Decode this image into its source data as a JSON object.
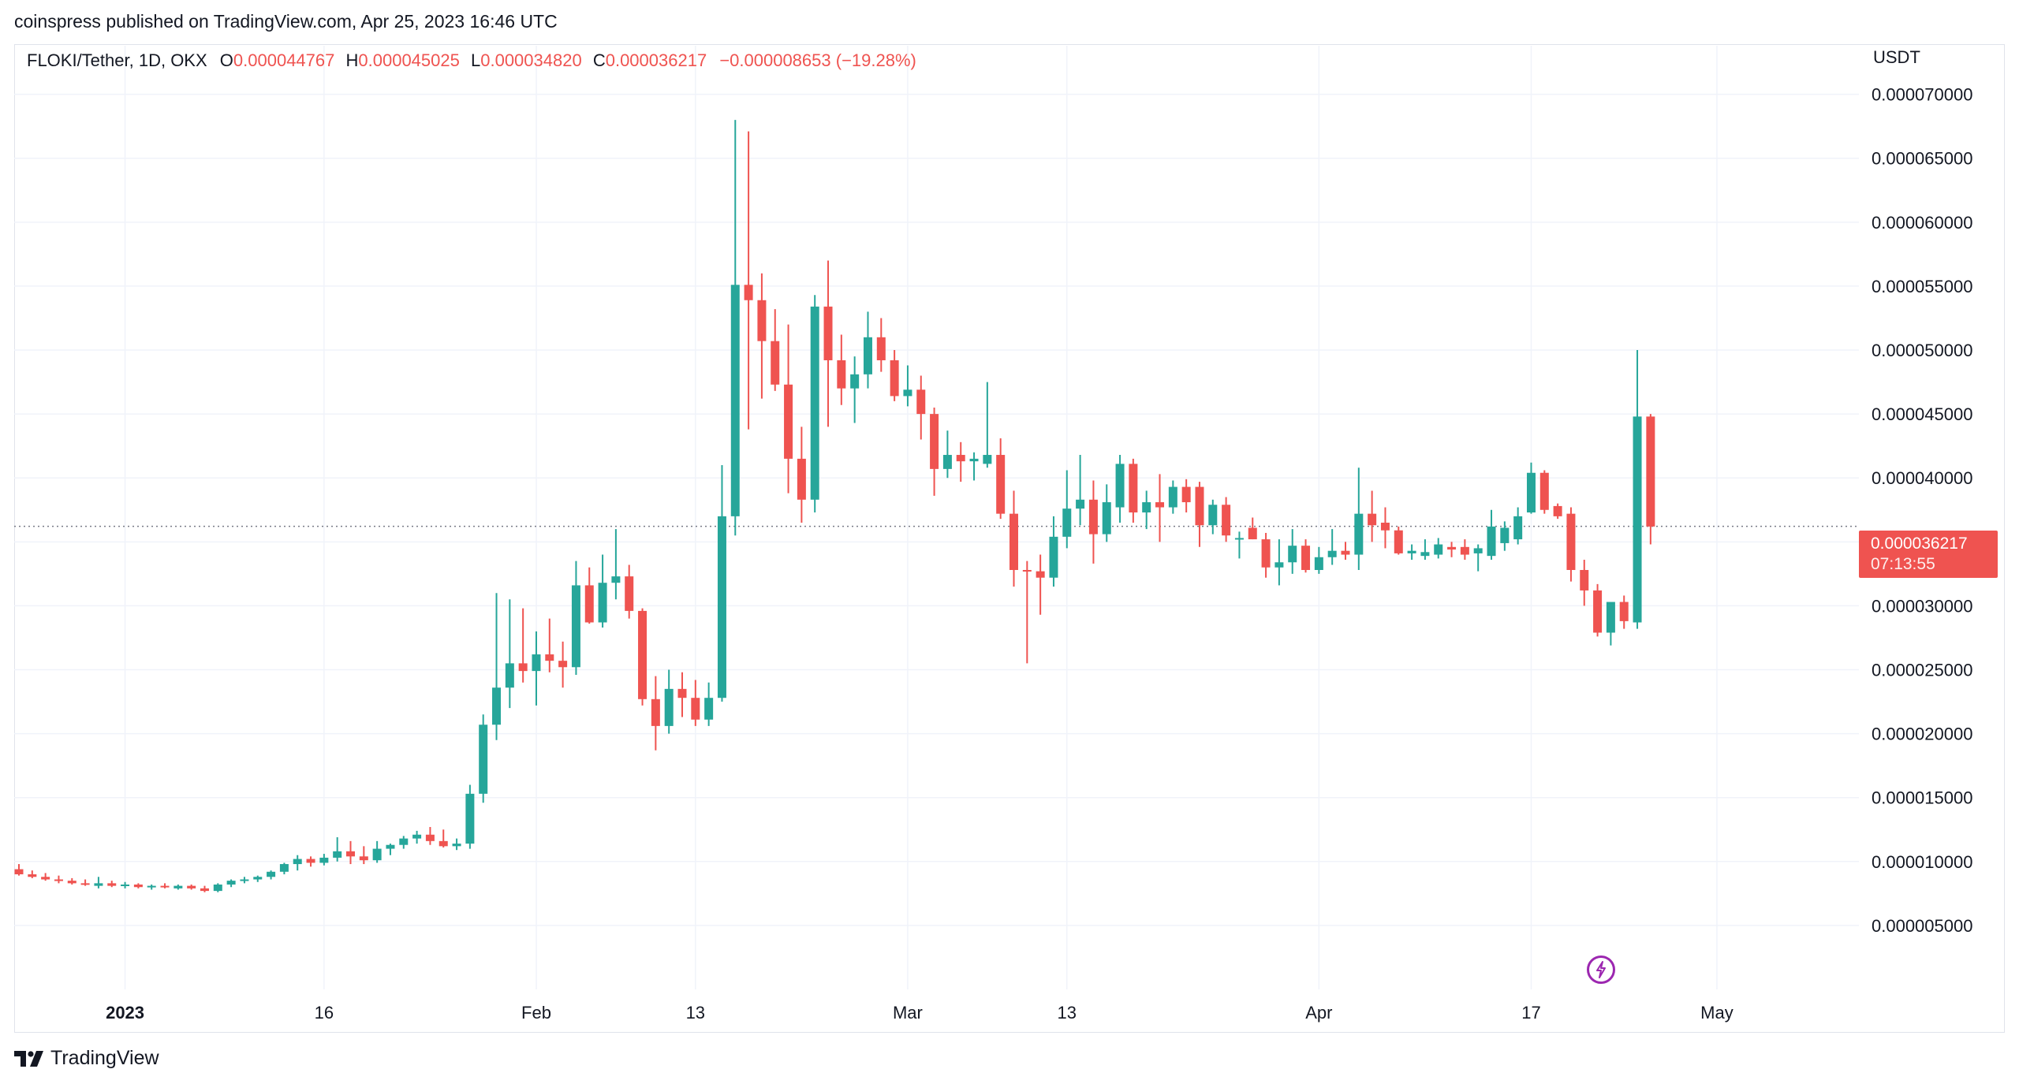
{
  "header": {
    "published": "coinspress published on TradingView.com, Apr 25, 2023 16:46 UTC"
  },
  "legend": {
    "symbol": "FLOKI/Tether, 1D, OKX",
    "o_label": "O",
    "o_value": "0.000044767",
    "h_label": "H",
    "h_value": "0.000045025",
    "l_label": "L",
    "l_value": "0.000034820",
    "c_label": "C",
    "c_value": "0.000036217",
    "change": "−0.000008653 (−19.28%)"
  },
  "axis": {
    "unit": "USDT"
  },
  "price_tag": {
    "price": "0.000036217",
    "countdown": "07:13:55"
  },
  "footer": {
    "brand": "TradingView"
  },
  "colors": {
    "up": "#26a69a",
    "down": "#ef5350",
    "grid": "#f0f3fa",
    "text": "#131722",
    "badge": "#9c27b0"
  },
  "chart_data": {
    "type": "candlestick",
    "symbol": "FLOKI/Tether",
    "interval": "1D",
    "exchange": "OKX",
    "ylabel": "USDT",
    "ylim": [
      0.0,
      7.38e-05
    ],
    "y_ticks": [
      {
        "v": 5e-06,
        "label": "0.000005000"
      },
      {
        "v": 1e-05,
        "label": "0.000010000"
      },
      {
        "v": 1.5e-05,
        "label": "0.000015000"
      },
      {
        "v": 2e-05,
        "label": "0.000020000"
      },
      {
        "v": 2.5e-05,
        "label": "0.000025000"
      },
      {
        "v": 3e-05,
        "label": "0.000030000"
      },
      {
        "v": 3.5e-05,
        "label": "0.000035000"
      },
      {
        "v": 4e-05,
        "label": "0.000040000"
      },
      {
        "v": 4.5e-05,
        "label": "0.000045000"
      },
      {
        "v": 5e-05,
        "label": "0.000050000"
      },
      {
        "v": 5.5e-05,
        "label": "0.000055000"
      },
      {
        "v": 6e-05,
        "label": "0.000060000"
      },
      {
        "v": 6.5e-05,
        "label": "0.000065000"
      },
      {
        "v": 7e-05,
        "label": "0.000070000"
      }
    ],
    "x_ticks": [
      {
        "i": 8,
        "label": "2023",
        "bold": true
      },
      {
        "i": 23,
        "label": "16",
        "bold": false
      },
      {
        "i": 39,
        "label": "Feb",
        "bold": false
      },
      {
        "i": 51,
        "label": "13",
        "bold": false
      },
      {
        "i": 67,
        "label": "Mar",
        "bold": false
      },
      {
        "i": 79,
        "label": "13",
        "bold": false
      },
      {
        "i": 98,
        "label": "Apr",
        "bold": false
      },
      {
        "i": 114,
        "label": "17",
        "bold": false
      },
      {
        "i": 128,
        "label": "May",
        "bold": false
      }
    ],
    "last_price": 3.6217e-05,
    "candles": [
      {
        "o": 9.4e-06,
        "h": 9.8e-06,
        "l": 8.9e-06,
        "c": 9e-06
      },
      {
        "o": 9e-06,
        "h": 9.3e-06,
        "l": 8.7e-06,
        "c": 8.8e-06
      },
      {
        "o": 8.8e-06,
        "h": 9.1e-06,
        "l": 8.5e-06,
        "c": 8.6e-06
      },
      {
        "o": 8.6e-06,
        "h": 8.9e-06,
        "l": 8.3e-06,
        "c": 8.5e-06
      },
      {
        "o": 8.5e-06,
        "h": 8.7e-06,
        "l": 8.2e-06,
        "c": 8.3e-06
      },
      {
        "o": 8.3e-06,
        "h": 8.6e-06,
        "l": 8.1e-06,
        "c": 8.2e-06
      },
      {
        "o": 8.1e-06,
        "h": 8.8e-06,
        "l": 7.9e-06,
        "c": 8.3e-06
      },
      {
        "o": 8.3e-06,
        "h": 8.5e-06,
        "l": 8e-06,
        "c": 8.1e-06
      },
      {
        "o": 8.1e-06,
        "h": 8.4e-06,
        "l": 7.9e-06,
        "c": 8.2e-06
      },
      {
        "o": 8.2e-06,
        "h": 8.3e-06,
        "l": 7.9e-06,
        "c": 8e-06
      },
      {
        "o": 8e-06,
        "h": 8.2e-06,
        "l": 7.8e-06,
        "c": 8.1e-06
      },
      {
        "o": 8.1e-06,
        "h": 8.3e-06,
        "l": 7.9e-06,
        "c": 8e-06
      },
      {
        "o": 7.9e-06,
        "h": 8.2e-06,
        "l": 7.8e-06,
        "c": 8.1e-06
      },
      {
        "o": 8.1e-06,
        "h": 8.2e-06,
        "l": 7.8e-06,
        "c": 7.9e-06
      },
      {
        "o": 7.9e-06,
        "h": 8.1e-06,
        "l": 7.6e-06,
        "c": 7.7e-06
      },
      {
        "o": 7.7e-06,
        "h": 8.3e-06,
        "l": 7.6e-06,
        "c": 8.2e-06
      },
      {
        "o": 8.2e-06,
        "h": 8.6e-06,
        "l": 8e-06,
        "c": 8.5e-06
      },
      {
        "o": 8.5e-06,
        "h": 8.8e-06,
        "l": 8.3e-06,
        "c": 8.6e-06
      },
      {
        "o": 8.6e-06,
        "h": 8.9e-06,
        "l": 8.4e-06,
        "c": 8.8e-06
      },
      {
        "o": 8.8e-06,
        "h": 9.3e-06,
        "l": 8.6e-06,
        "c": 9.2e-06
      },
      {
        "o": 9.2e-06,
        "h": 9.9e-06,
        "l": 9e-06,
        "c": 9.8e-06
      },
      {
        "o": 9.8e-06,
        "h": 1.05e-05,
        "l": 9.3e-06,
        "c": 1.02e-05
      },
      {
        "o": 1.02e-05,
        "h": 1.04e-05,
        "l": 9.6e-06,
        "c": 9.9e-06
      },
      {
        "o": 9.9e-06,
        "h": 1.06e-05,
        "l": 9.7e-06,
        "c": 1.03e-05
      },
      {
        "o": 1.03e-05,
        "h": 1.19e-05,
        "l": 1e-05,
        "c": 1.08e-05
      },
      {
        "o": 1.08e-05,
        "h": 1.16e-05,
        "l": 9.8e-06,
        "c": 1.04e-05
      },
      {
        "o": 1.04e-05,
        "h": 1.12e-05,
        "l": 9.8e-06,
        "c": 1.01e-05
      },
      {
        "o": 1.01e-05,
        "h": 1.16e-05,
        "l": 9.9e-06,
        "c": 1.1e-05
      },
      {
        "o": 1.1e-05,
        "h": 1.14e-05,
        "l": 1.05e-05,
        "c": 1.13e-05
      },
      {
        "o": 1.13e-05,
        "h": 1.2e-05,
        "l": 1.1e-05,
        "c": 1.18e-05
      },
      {
        "o": 1.18e-05,
        "h": 1.24e-05,
        "l": 1.14e-05,
        "c": 1.21e-05
      },
      {
        "o": 1.21e-05,
        "h": 1.27e-05,
        "l": 1.13e-05,
        "c": 1.16e-05
      },
      {
        "o": 1.16e-05,
        "h": 1.25e-05,
        "l": 1.11e-05,
        "c": 1.12e-05
      },
      {
        "o": 1.12e-05,
        "h": 1.18e-05,
        "l": 1.09e-05,
        "c": 1.14e-05
      },
      {
        "o": 1.14e-05,
        "h": 1.6e-05,
        "l": 1.1e-05,
        "c": 1.53e-05
      },
      {
        "o": 1.53e-05,
        "h": 2.15e-05,
        "l": 1.46e-05,
        "c": 2.07e-05
      },
      {
        "o": 2.07e-05,
        "h": 3.1e-05,
        "l": 1.95e-05,
        "c": 2.36e-05
      },
      {
        "o": 2.36e-05,
        "h": 3.05e-05,
        "l": 2.2e-05,
        "c": 2.55e-05
      },
      {
        "o": 2.55e-05,
        "h": 2.98e-05,
        "l": 2.4e-05,
        "c": 2.49e-05
      },
      {
        "o": 2.49e-05,
        "h": 2.8e-05,
        "l": 2.22e-05,
        "c": 2.62e-05
      },
      {
        "o": 2.62e-05,
        "h": 2.9e-05,
        "l": 2.48e-05,
        "c": 2.57e-05
      },
      {
        "o": 2.57e-05,
        "h": 2.72e-05,
        "l": 2.36e-05,
        "c": 2.52e-05
      },
      {
        "o": 2.52e-05,
        "h": 3.35e-05,
        "l": 2.46e-05,
        "c": 3.16e-05
      },
      {
        "o": 3.16e-05,
        "h": 3.3e-05,
        "l": 2.86e-05,
        "c": 2.87e-05
      },
      {
        "o": 2.87e-05,
        "h": 3.4e-05,
        "l": 2.83e-05,
        "c": 3.18e-05
      },
      {
        "o": 3.18e-05,
        "h": 3.6e-05,
        "l": 3.05e-05,
        "c": 3.23e-05
      },
      {
        "o": 3.23e-05,
        "h": 3.32e-05,
        "l": 2.9e-05,
        "c": 2.96e-05
      },
      {
        "o": 2.96e-05,
        "h": 2.98e-05,
        "l": 2.22e-05,
        "c": 2.27e-05
      },
      {
        "o": 2.27e-05,
        "h": 2.45e-05,
        "l": 1.87e-05,
        "c": 2.06e-05
      },
      {
        "o": 2.06e-05,
        "h": 2.5e-05,
        "l": 2e-05,
        "c": 2.35e-05
      },
      {
        "o": 2.35e-05,
        "h": 2.48e-05,
        "l": 2.13e-05,
        "c": 2.28e-05
      },
      {
        "o": 2.28e-05,
        "h": 2.42e-05,
        "l": 2.06e-05,
        "c": 2.11e-05
      },
      {
        "o": 2.11e-05,
        "h": 2.4e-05,
        "l": 2.06e-05,
        "c": 2.28e-05
      },
      {
        "o": 2.28e-05,
        "h": 4.1e-05,
        "l": 2.25e-05,
        "c": 3.7e-05
      },
      {
        "o": 3.7e-05,
        "h": 6.8e-05,
        "l": 3.55e-05,
        "c": 5.51e-05
      },
      {
        "o": 5.51e-05,
        "h": 6.71e-05,
        "l": 4.38e-05,
        "c": 5.39e-05
      },
      {
        "o": 5.39e-05,
        "h": 5.6e-05,
        "l": 4.62e-05,
        "c": 5.07e-05
      },
      {
        "o": 5.07e-05,
        "h": 5.32e-05,
        "l": 4.68e-05,
        "c": 4.73e-05
      },
      {
        "o": 4.73e-05,
        "h": 5.2e-05,
        "l": 3.88e-05,
        "c": 4.15e-05
      },
      {
        "o": 4.15e-05,
        "h": 4.4e-05,
        "l": 3.65e-05,
        "c": 3.83e-05
      },
      {
        "o": 3.83e-05,
        "h": 5.43e-05,
        "l": 3.73e-05,
        "c": 5.34e-05
      },
      {
        "o": 5.34e-05,
        "h": 5.7e-05,
        "l": 4.4e-05,
        "c": 4.92e-05
      },
      {
        "o": 4.92e-05,
        "h": 5.12e-05,
        "l": 4.57e-05,
        "c": 4.7e-05
      },
      {
        "o": 4.7e-05,
        "h": 4.95e-05,
        "l": 4.43e-05,
        "c": 4.81e-05
      },
      {
        "o": 4.81e-05,
        "h": 5.3e-05,
        "l": 4.7e-05,
        "c": 5.1e-05
      },
      {
        "o": 5.1e-05,
        "h": 5.25e-05,
        "l": 4.83e-05,
        "c": 4.92e-05
      },
      {
        "o": 4.92e-05,
        "h": 5e-05,
        "l": 4.6e-05,
        "c": 4.64e-05
      },
      {
        "o": 4.64e-05,
        "h": 4.88e-05,
        "l": 4.56e-05,
        "c": 4.69e-05
      },
      {
        "o": 4.69e-05,
        "h": 4.8e-05,
        "l": 4.3e-05,
        "c": 4.5e-05
      },
      {
        "o": 4.5e-05,
        "h": 4.55e-05,
        "l": 3.86e-05,
        "c": 4.07e-05
      },
      {
        "o": 4.07e-05,
        "h": 4.37e-05,
        "l": 4e-05,
        "c": 4.18e-05
      },
      {
        "o": 4.18e-05,
        "h": 4.28e-05,
        "l": 3.97e-05,
        "c": 4.13e-05
      },
      {
        "o": 4.13e-05,
        "h": 4.2e-05,
        "l": 3.98e-05,
        "c": 4.15e-05
      },
      {
        "o": 4.11e-05,
        "h": 4.75e-05,
        "l": 4.08e-05,
        "c": 4.18e-05
      },
      {
        "o": 4.18e-05,
        "h": 4.31e-05,
        "l": 3.68e-05,
        "c": 3.72e-05
      },
      {
        "o": 3.72e-05,
        "h": 3.9e-05,
        "l": 3.15e-05,
        "c": 3.28e-05
      },
      {
        "o": 3.28e-05,
        "h": 3.35e-05,
        "l": 2.55e-05,
        "c": 3.27e-05
      },
      {
        "o": 3.27e-05,
        "h": 3.4e-05,
        "l": 2.93e-05,
        "c": 3.22e-05
      },
      {
        "o": 3.22e-05,
        "h": 3.7e-05,
        "l": 3.15e-05,
        "c": 3.54e-05
      },
      {
        "o": 3.54e-05,
        "h": 4.06e-05,
        "l": 3.45e-05,
        "c": 3.76e-05
      },
      {
        "o": 3.76e-05,
        "h": 4.18e-05,
        "l": 3.63e-05,
        "c": 3.83e-05
      },
      {
        "o": 3.83e-05,
        "h": 3.98e-05,
        "l": 3.33e-05,
        "c": 3.56e-05
      },
      {
        "o": 3.56e-05,
        "h": 3.95e-05,
        "l": 3.5e-05,
        "c": 3.81e-05
      },
      {
        "o": 3.77e-05,
        "h": 4.18e-05,
        "l": 3.65e-05,
        "c": 4.11e-05
      },
      {
        "o": 4.11e-05,
        "h": 4.15e-05,
        "l": 3.65e-05,
        "c": 3.73e-05
      },
      {
        "o": 3.73e-05,
        "h": 3.9e-05,
        "l": 3.6e-05,
        "c": 3.81e-05
      },
      {
        "o": 3.81e-05,
        "h": 4.03e-05,
        "l": 3.5e-05,
        "c": 3.77e-05
      },
      {
        "o": 3.77e-05,
        "h": 3.98e-05,
        "l": 3.72e-05,
        "c": 3.93e-05
      },
      {
        "o": 3.93e-05,
        "h": 3.99e-05,
        "l": 3.73e-05,
        "c": 3.81e-05
      },
      {
        "o": 3.93e-05,
        "h": 3.97e-05,
        "l": 3.46e-05,
        "c": 3.63e-05
      },
      {
        "o": 3.63e-05,
        "h": 3.83e-05,
        "l": 3.56e-05,
        "c": 3.79e-05
      },
      {
        "o": 3.79e-05,
        "h": 3.85e-05,
        "l": 3.5e-05,
        "c": 3.55e-05
      },
      {
        "o": 3.52e-05,
        "h": 3.58e-05,
        "l": 3.37e-05,
        "c": 3.53e-05
      },
      {
        "o": 3.61e-05,
        "h": 3.69e-05,
        "l": 3.52e-05,
        "c": 3.52e-05
      },
      {
        "o": 3.52e-05,
        "h": 3.57e-05,
        "l": 3.22e-05,
        "c": 3.3e-05
      },
      {
        "o": 3.3e-05,
        "h": 3.52e-05,
        "l": 3.16e-05,
        "c": 3.34e-05
      },
      {
        "o": 3.34e-05,
        "h": 3.6e-05,
        "l": 3.25e-05,
        "c": 3.47e-05
      },
      {
        "o": 3.47e-05,
        "h": 3.52e-05,
        "l": 3.26e-05,
        "c": 3.28e-05
      },
      {
        "o": 3.28e-05,
        "h": 3.46e-05,
        "l": 3.25e-05,
        "c": 3.38e-05
      },
      {
        "o": 3.38e-05,
        "h": 3.6e-05,
        "l": 3.32e-05,
        "c": 3.43e-05
      },
      {
        "o": 3.43e-05,
        "h": 3.5e-05,
        "l": 3.36e-05,
        "c": 3.4e-05
      },
      {
        "o": 3.4e-05,
        "h": 4.08e-05,
        "l": 3.28e-05,
        "c": 3.72e-05
      },
      {
        "o": 3.72e-05,
        "h": 3.9e-05,
        "l": 3.5e-05,
        "c": 3.63e-05
      },
      {
        "o": 3.65e-05,
        "h": 3.77e-05,
        "l": 3.45e-05,
        "c": 3.59e-05
      },
      {
        "o": 3.59e-05,
        "h": 3.62e-05,
        "l": 3.4e-05,
        "c": 3.41e-05
      },
      {
        "o": 3.41e-05,
        "h": 3.48e-05,
        "l": 3.36e-05,
        "c": 3.43e-05
      },
      {
        "o": 3.39e-05,
        "h": 3.52e-05,
        "l": 3.36e-05,
        "c": 3.42e-05
      },
      {
        "o": 3.4e-05,
        "h": 3.53e-05,
        "l": 3.37e-05,
        "c": 3.48e-05
      },
      {
        "o": 3.46e-05,
        "h": 3.5e-05,
        "l": 3.38e-05,
        "c": 3.44e-05
      },
      {
        "o": 3.46e-05,
        "h": 3.52e-05,
        "l": 3.36e-05,
        "c": 3.4e-05
      },
      {
        "o": 3.41e-05,
        "h": 3.48e-05,
        "l": 3.27e-05,
        "c": 3.45e-05
      },
      {
        "o": 3.39e-05,
        "h": 3.75e-05,
        "l": 3.36e-05,
        "c": 3.62e-05
      },
      {
        "o": 3.49e-05,
        "h": 3.66e-05,
        "l": 3.43e-05,
        "c": 3.61e-05
      },
      {
        "o": 3.52e-05,
        "h": 3.77e-05,
        "l": 3.48e-05,
        "c": 3.7e-05
      },
      {
        "o": 3.73e-05,
        "h": 4.12e-05,
        "l": 3.72e-05,
        "c": 4.04e-05
      },
      {
        "o": 4.04e-05,
        "h": 4.06e-05,
        "l": 3.72e-05,
        "c": 3.75e-05
      },
      {
        "o": 3.78e-05,
        "h": 3.8e-05,
        "l": 3.68e-05,
        "c": 3.7e-05
      },
      {
        "o": 3.72e-05,
        "h": 3.77e-05,
        "l": 3.19e-05,
        "c": 3.28e-05
      },
      {
        "o": 3.28e-05,
        "h": 3.36e-05,
        "l": 3e-05,
        "c": 3.12e-05
      },
      {
        "o": 3.12e-05,
        "h": 3.17e-05,
        "l": 2.76e-05,
        "c": 2.79e-05
      },
      {
        "o": 2.79e-05,
        "h": 3.02e-05,
        "l": 2.69e-05,
        "c": 3.03e-05
      },
      {
        "o": 3.03e-05,
        "h": 3.08e-05,
        "l": 2.82e-05,
        "c": 2.88e-05
      },
      {
        "o": 2.87e-05,
        "h": 5e-05,
        "l": 2.82e-05,
        "c": 4.48e-05
      },
      {
        "o": 4.48e-05,
        "h": 4.5e-05,
        "l": 3.48e-05,
        "c": 3.62e-05
      }
    ]
  }
}
